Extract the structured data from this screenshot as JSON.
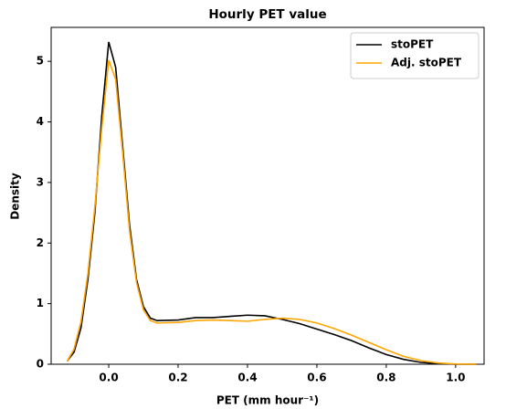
{
  "chart_data": {
    "type": "line",
    "title": "Hourly PET value",
    "x_label": "PET (mm hour⁻¹)",
    "y_label": "Density",
    "x": [
      -0.12,
      -0.1,
      -0.08,
      -0.06,
      -0.04,
      -0.02,
      0.0,
      0.02,
      0.04,
      0.06,
      0.08,
      0.1,
      0.12,
      0.14,
      0.2,
      0.25,
      0.3,
      0.35,
      0.4,
      0.45,
      0.5,
      0.55,
      0.6,
      0.65,
      0.7,
      0.75,
      0.8,
      0.85,
      0.9,
      0.95,
      1.0,
      1.06
    ],
    "series": [
      {
        "name": "stoPET",
        "color": "#000000",
        "values": [
          0.05,
          0.2,
          0.6,
          1.4,
          2.5,
          4.1,
          5.32,
          4.9,
          3.6,
          2.3,
          1.4,
          0.95,
          0.76,
          0.72,
          0.73,
          0.77,
          0.77,
          0.79,
          0.81,
          0.8,
          0.74,
          0.67,
          0.58,
          0.49,
          0.39,
          0.27,
          0.16,
          0.08,
          0.03,
          0.01,
          0.0,
          0.0
        ]
      },
      {
        "name": "Adj. stoPET",
        "color": "#ffa500",
        "values": [
          0.05,
          0.25,
          0.7,
          1.5,
          2.6,
          3.9,
          5.02,
          4.7,
          3.5,
          2.2,
          1.35,
          0.9,
          0.72,
          0.68,
          0.69,
          0.72,
          0.73,
          0.72,
          0.71,
          0.74,
          0.76,
          0.74,
          0.68,
          0.59,
          0.48,
          0.36,
          0.24,
          0.13,
          0.06,
          0.02,
          0.005,
          0.0
        ]
      }
    ],
    "xlim": [
      -0.166,
      1.082
    ],
    "ylim": [
      0,
      5.56
    ],
    "xticks": [
      {
        "value": 0.0,
        "label": "0.0"
      },
      0.2,
      0.4,
      0.6,
      0.8,
      {
        "value": 1.0,
        "label": "1.0"
      }
    ],
    "yticks": [
      0,
      1,
      2,
      3,
      4,
      5
    ],
    "legend": "upper right"
  }
}
